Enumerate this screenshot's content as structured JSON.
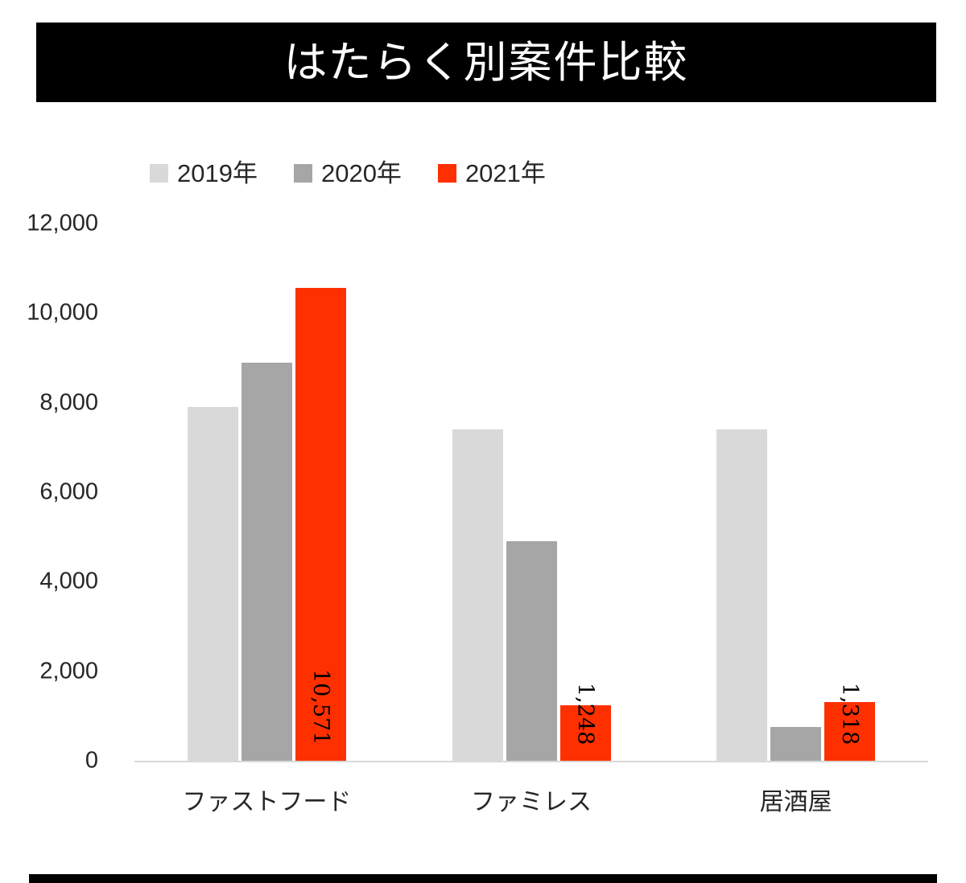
{
  "banner": {
    "title": "はたらく別案件比較"
  },
  "chart_data": {
    "type": "bar",
    "title": "はたらく別案件比較",
    "categories": [
      "ファストフード",
      "ファミレス",
      "居酒屋"
    ],
    "series": [
      {
        "name": "2019年",
        "color": "#d9d9d9",
        "values": [
          7900,
          7400,
          7400
        ]
      },
      {
        "name": "2020年",
        "color": "#a6a6a6",
        "values": [
          8900,
          4900,
          750
        ]
      },
      {
        "name": "2021年",
        "color": "#ff3000",
        "values": [
          10571,
          1248,
          1318
        ],
        "data_labels": [
          "10,571",
          "1,248",
          "1,318"
        ]
      }
    ],
    "ylim": [
      0,
      12000
    ],
    "y_tick_step": 2000,
    "y_ticks": [
      "0",
      "2,000",
      "4,000",
      "6,000",
      "8,000",
      "10,000",
      "12,000"
    ],
    "grid": false,
    "legend_position": "top-left",
    "colors": {
      "banner_bg": "#000000",
      "banner_text": "#ffffff",
      "axis_text": "#262626",
      "axis_line": "#d9d9d9",
      "data_label_text": "#000000"
    }
  }
}
